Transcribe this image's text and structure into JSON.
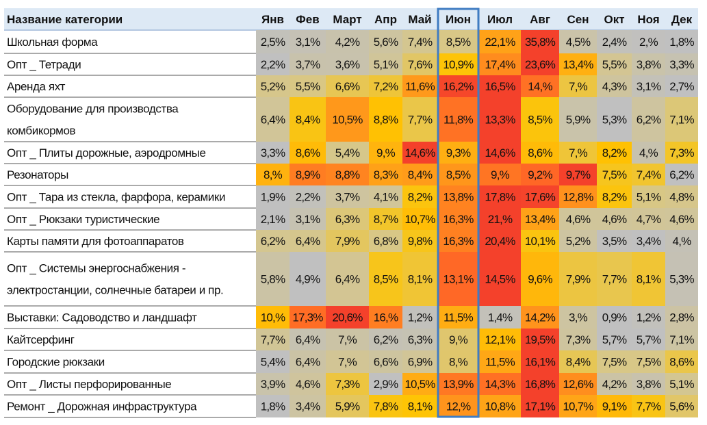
{
  "chart_data": {
    "type": "heatmap",
    "header": {
      "category_label": "Название категории",
      "months": [
        "Янв",
        "Фев",
        "Март",
        "Апр",
        "Май",
        "Июн",
        "Июл",
        "Авг",
        "Сен",
        "Окт",
        "Ноя",
        "Дек"
      ]
    },
    "highlighted_month": "Июн",
    "rows": [
      {
        "name": [
          "Школьная форма"
        ],
        "values": [
          "2,5%",
          "3,1%",
          "4,2%",
          "5,6%",
          "7,4%",
          "8,5%",
          "22,1%",
          "35,8%",
          "4,5%",
          "2,4%",
          "2,%",
          "1,8%"
        ]
      },
      {
        "name": [
          "Опт _ Тетради"
        ],
        "values": [
          "2,2%",
          "3,7%",
          "3,6%",
          "5,1%",
          "7,6%",
          "10,9%",
          "17,4%",
          "23,6%",
          "13,4%",
          "5,5%",
          "3,8%",
          "3,3%"
        ]
      },
      {
        "name": [
          "Аренда яхт"
        ],
        "values": [
          "5,2%",
          "5,5%",
          "6,6%",
          "7,2%",
          "11,6%",
          "16,2%",
          "16,5%",
          "14,%",
          "7,%",
          "4,3%",
          "3,1%",
          "2,7%"
        ]
      },
      {
        "name": [
          "Оборудование для производства",
          "комбикормов"
        ],
        "values": [
          "6,4%",
          "8,4%",
          "10,5%",
          "8,8%",
          "7,7%",
          "11,8%",
          "13,3%",
          "8,5%",
          "5,9%",
          "5,3%",
          "6,2%",
          "7,1%"
        ]
      },
      {
        "name": [
          "Опт _ Плиты дорожные, аэродромные"
        ],
        "values": [
          "3,3%",
          "8,6%",
          "5,4%",
          "9,%",
          "14,6%",
          "9,3%",
          "14,6%",
          "8,6%",
          "7,%",
          "8,2%",
          "4,%",
          "7,3%"
        ]
      },
      {
        "name": [
          "Резонаторы"
        ],
        "values": [
          "8,%",
          "8,9%",
          "8,8%",
          "8,3%",
          "8,4%",
          "8,5%",
          "9,%",
          "9,2%",
          "9,7%",
          "7,5%",
          "7,4%",
          "6,2%"
        ]
      },
      {
        "name": [
          "Опт _ Тара из стекла, фарфора, керамики"
        ],
        "values": [
          "1,9%",
          "2,2%",
          "3,7%",
          "4,1%",
          "8,2%",
          "13,8%",
          "17,8%",
          "17,6%",
          "12,8%",
          "8,2%",
          "5,1%",
          "4,8%"
        ]
      },
      {
        "name": [
          "Опт _ Рюкзаки туристические"
        ],
        "values": [
          "2,1%",
          "3,1%",
          "6,3%",
          "8,7%",
          "10,7%",
          "16,3%",
          "21,%",
          "13,4%",
          "4,6%",
          "4,6%",
          "4,7%",
          "4,6%"
        ]
      },
      {
        "name": [
          "Карты памяти для фотоаппаратов"
        ],
        "values": [
          "6,2%",
          "6,4%",
          "7,9%",
          "6,8%",
          "9,8%",
          "16,3%",
          "20,4%",
          "10,1%",
          "5,2%",
          "3,5%",
          "3,4%",
          "4,%"
        ]
      },
      {
        "name": [
          "Опт _ Системы энергоснабжения -",
          "электростанции, солнечные батареи и пр."
        ],
        "values": [
          "5,8%",
          "4,9%",
          "6,4%",
          "8,5%",
          "8,1%",
          "13,1%",
          "14,5%",
          "9,6%",
          "7,9%",
          "7,7%",
          "8,1%",
          "5,3%"
        ]
      },
      {
        "name": [
          "Выставки: Садоводство и ландшафт"
        ],
        "values": [
          "10,%",
          "17,3%",
          "20,6%",
          "16,%",
          "1,2%",
          "11,5%",
          "1,4%",
          "14,2%",
          "3,%",
          "0,9%",
          "1,2%",
          "2,8%"
        ]
      },
      {
        "name": [
          "Кайтсерфинг"
        ],
        "values": [
          "7,7%",
          "6,4%",
          "7,%",
          "6,2%",
          "6,3%",
          "9,%",
          "12,1%",
          "19,5%",
          "7,3%",
          "5,7%",
          "5,7%",
          "7,1%"
        ]
      },
      {
        "name": [
          "Городские рюкзаки"
        ],
        "values": [
          "5,4%",
          "6,4%",
          "7,%",
          "6,6%",
          "6,9%",
          "8,%",
          "11,5%",
          "16,1%",
          "8,4%",
          "7,5%",
          "7,5%",
          "8,6%"
        ]
      },
      {
        "name": [
          "Опт _ Листы перфорированные"
        ],
        "values": [
          "3,9%",
          "4,6%",
          "7,3%",
          "2,9%",
          "10,5%",
          "13,9%",
          "14,3%",
          "16,8%",
          "12,6%",
          "4,2%",
          "3,8%",
          "5,1%"
        ]
      },
      {
        "name": [
          "Ремонт _ Дорожная инфраструктура"
        ],
        "values": [
          "1,8%",
          "3,4%",
          "5,9%",
          "7,8%",
          "8,1%",
          "12,%",
          "10,8%",
          "17,1%",
          "10,7%",
          "9,1%",
          "7,7%",
          "5,6%"
        ]
      }
    ]
  },
  "colors": {
    "header_bg": "#dde9f5",
    "header_rule": "#9fb8d8",
    "row_rule": "#555555",
    "highlight": "#3f7cc2",
    "scale": [
      {
        "t": 0.0,
        "color": "#c0c0c0"
      },
      {
        "t": 0.2,
        "color": "#d8c786"
      },
      {
        "t": 0.42,
        "color": "#ffc400"
      },
      {
        "t": 0.55,
        "color": "#ffab15"
      },
      {
        "t": 0.72,
        "color": "#ff8a1f"
      },
      {
        "t": 0.88,
        "color": "#ff6127"
      },
      {
        "t": 1.0,
        "color": "#f4412b"
      }
    ]
  }
}
